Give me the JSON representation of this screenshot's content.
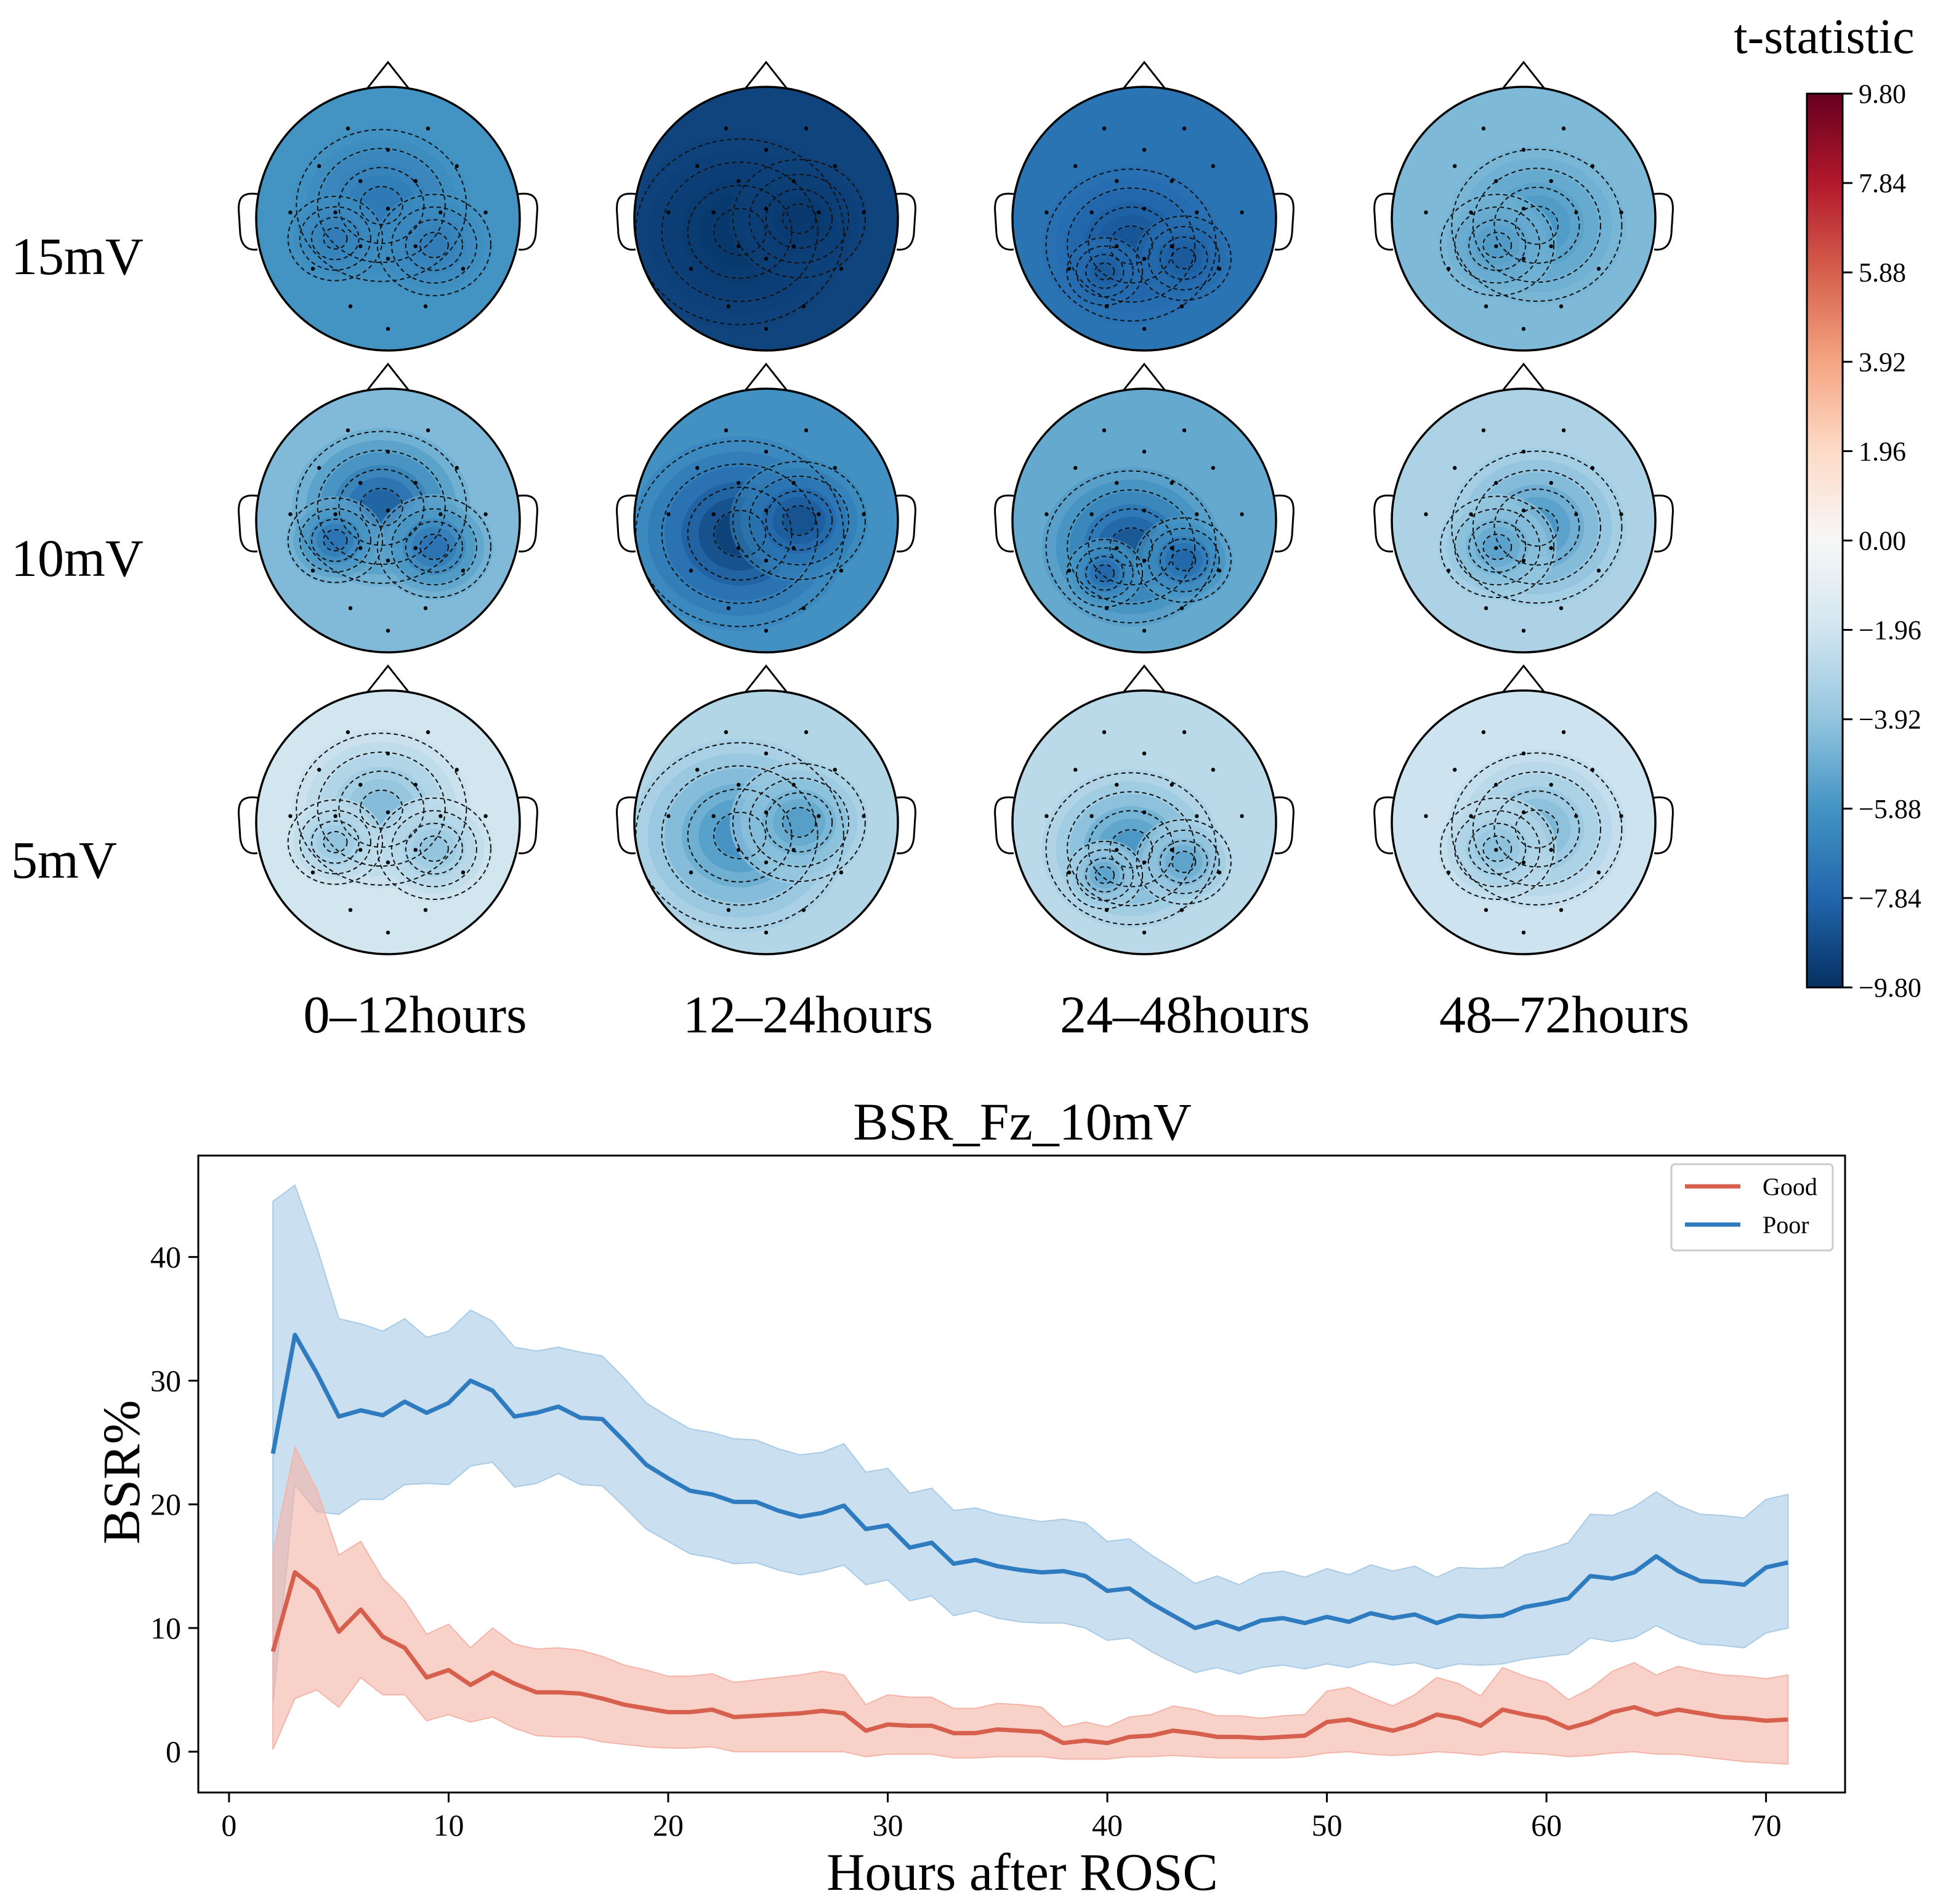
{
  "chart_data": [
    {
      "type": "heatmap",
      "subtype": "topographic-head-maps",
      "colorbar_title": "t-statistic",
      "colorbar_ticks": [
        "9.80",
        "7.84",
        "5.88",
        "3.92",
        "1.96",
        "0.00",
        "−1.96",
        "−3.92",
        "−5.88",
        "−7.84",
        "−9.80"
      ],
      "colorbar_range": [
        -9.8,
        9.8
      ],
      "colormap": [
        "#053061",
        "#2166ac",
        "#4393c3",
        "#92c5de",
        "#d1e5f0",
        "#f7f7f7",
        "#fddbc7",
        "#f4a582",
        "#d6604d",
        "#b2182b",
        "#67001f"
      ],
      "rows": [
        "15mV",
        "10mV",
        "5mV"
      ],
      "columns": [
        "0–12hours",
        "12–24hours",
        "24–48hours",
        "48–72hours"
      ],
      "mean_t": [
        [
          -6.2,
          -9.2,
          -7.6,
          -4.8
        ],
        [
          -5.4,
          -6.9,
          -6.0,
          -3.9
        ],
        [
          -2.6,
          -3.8,
          -3.6,
          -2.8
        ]
      ],
      "min_t": [
        [
          -7.2,
          -9.6,
          -8.6,
          -6.0
        ],
        [
          -8.4,
          -9.6,
          -8.8,
          -6.2
        ],
        [
          -4.6,
          -6.4,
          -6.2,
          -4.8
        ]
      ]
    },
    {
      "type": "line",
      "title": "BSR_Fz_10mV",
      "xlabel": "Hours after ROSC",
      "ylabel": "BSR%",
      "xlim": [
        -1.4,
        73.6
      ],
      "ylim": [
        -3.3,
        48.2
      ],
      "xticks": [
        0,
        10,
        20,
        30,
        40,
        50,
        60,
        70
      ],
      "yticks": [
        0,
        10,
        20,
        30,
        40
      ],
      "legend_position": "top-right",
      "x": [
        2,
        3,
        4,
        5,
        6,
        7,
        8,
        9,
        10,
        11,
        12,
        13,
        14,
        15,
        16,
        17,
        18,
        19,
        20,
        21,
        22,
        23,
        24,
        25,
        26,
        27,
        28,
        29,
        30,
        31,
        32,
        33,
        34,
        35,
        36,
        37,
        38,
        39,
        40,
        41,
        42,
        43,
        44,
        45,
        46,
        47,
        48,
        49,
        50,
        51,
        52,
        53,
        54,
        55,
        56,
        57,
        58,
        59,
        60,
        61,
        62,
        63,
        64,
        65,
        66,
        67,
        68,
        69,
        70,
        71
      ],
      "series": [
        {
          "name": "Good",
          "color": "#d6604d",
          "values": [
            8.1,
            14.5,
            13.1,
            9.7,
            11.5,
            9.3,
            8.4,
            6.0,
            6.6,
            5.4,
            6.4,
            5.5,
            4.8,
            4.8,
            4.7,
            4.3,
            3.8,
            3.5,
            3.2,
            3.2,
            3.4,
            2.8,
            2.9,
            3.0,
            3.1,
            3.3,
            3.1,
            1.7,
            2.2,
            2.1,
            2.1,
            1.5,
            1.5,
            1.8,
            1.7,
            1.6,
            0.7,
            0.9,
            0.7,
            1.2,
            1.3,
            1.7,
            1.5,
            1.2,
            1.2,
            1.1,
            1.2,
            1.3,
            2.4,
            2.6,
            2.1,
            1.7,
            2.2,
            3.0,
            2.7,
            2.1,
            3.4,
            3.0,
            2.7,
            1.9,
            2.4,
            3.2,
            3.6,
            3.0,
            3.4,
            3.1,
            2.8,
            2.7,
            2.5,
            2.6
          ],
          "lower": [
            0.2,
            4.3,
            5.0,
            3.6,
            6.0,
            4.6,
            4.6,
            2.5,
            3.0,
            2.4,
            2.8,
            1.9,
            1.3,
            1.2,
            1.2,
            0.8,
            0.6,
            0.4,
            0.3,
            0.3,
            0.4,
            0.0,
            0.0,
            0.0,
            0.0,
            0.0,
            0.0,
            -0.4,
            -0.2,
            -0.2,
            -0.2,
            -0.5,
            -0.5,
            -0.4,
            -0.4,
            -0.4,
            -0.6,
            -0.6,
            -0.6,
            -0.4,
            -0.4,
            -0.3,
            -0.4,
            -0.5,
            -0.5,
            -0.5,
            -0.5,
            -0.4,
            -0.1,
            0.0,
            -0.2,
            -0.3,
            -0.2,
            0.0,
            -0.1,
            -0.3,
            0.0,
            -0.1,
            -0.2,
            -0.4,
            -0.3,
            -0.1,
            0.0,
            -0.2,
            -0.2,
            -0.4,
            -0.6,
            -0.8,
            -0.9,
            -1.0
          ],
          "upper": [
            16.0,
            24.6,
            21.2,
            15.9,
            17.0,
            14.0,
            12.2,
            9.5,
            10.3,
            8.4,
            10.0,
            8.7,
            8.3,
            8.4,
            8.2,
            7.7,
            7.0,
            6.6,
            6.1,
            6.1,
            6.3,
            5.6,
            5.8,
            6.0,
            6.2,
            6.5,
            6.2,
            3.8,
            4.6,
            4.4,
            4.4,
            3.5,
            3.5,
            3.9,
            3.8,
            3.6,
            2.0,
            2.4,
            2.0,
            2.8,
            3.0,
            3.7,
            3.4,
            2.9,
            2.9,
            2.7,
            2.9,
            3.0,
            4.9,
            5.2,
            4.4,
            3.7,
            4.6,
            6.0,
            5.5,
            4.5,
            6.8,
            6.1,
            5.6,
            4.2,
            5.1,
            6.5,
            7.2,
            6.2,
            6.9,
            6.5,
            6.2,
            6.1,
            5.9,
            6.2
          ]
        },
        {
          "name": "Poor",
          "color": "#2f7bbf",
          "values": [
            24.1,
            33.7,
            30.6,
            27.1,
            27.6,
            27.2,
            28.3,
            27.4,
            28.2,
            30.0,
            29.2,
            27.1,
            27.4,
            27.9,
            27.0,
            26.9,
            25.1,
            23.2,
            22.1,
            21.1,
            20.8,
            20.2,
            20.2,
            19.5,
            19.0,
            19.3,
            19.9,
            18.0,
            18.3,
            16.5,
            16.9,
            15.2,
            15.5,
            15.0,
            14.7,
            14.5,
            14.6,
            14.2,
            13.0,
            13.2,
            12.0,
            11.0,
            10.0,
            10.5,
            9.9,
            10.6,
            10.8,
            10.4,
            10.9,
            10.5,
            11.2,
            10.8,
            11.1,
            10.4,
            11.0,
            10.9,
            11.0,
            11.7,
            12.0,
            12.4,
            14.2,
            14.0,
            14.5,
            15.8,
            14.6,
            13.8,
            13.7,
            13.5,
            14.9,
            15.3
          ],
          "lower": [
            3.8,
            21.6,
            19.4,
            19.2,
            20.4,
            20.4,
            21.6,
            21.7,
            21.6,
            23.1,
            23.4,
            21.4,
            21.7,
            22.5,
            21.6,
            21.5,
            19.8,
            18.0,
            17.0,
            16.0,
            15.7,
            15.2,
            15.3,
            14.7,
            14.3,
            14.6,
            15.1,
            13.5,
            13.9,
            12.2,
            12.6,
            11.0,
            11.4,
            10.8,
            10.5,
            10.4,
            10.4,
            10.0,
            9.0,
            9.2,
            8.1,
            7.2,
            6.4,
            6.8,
            6.3,
            6.8,
            7.0,
            6.7,
            7.1,
            6.8,
            7.3,
            7.0,
            7.2,
            6.7,
            7.1,
            7.0,
            7.1,
            7.5,
            7.7,
            7.9,
            9.2,
            8.9,
            9.2,
            10.2,
            9.3,
            8.7,
            8.6,
            8.4,
            9.6,
            10.0
          ],
          "upper": [
            44.5,
            45.8,
            40.8,
            35.0,
            34.6,
            34.0,
            35.0,
            33.5,
            34.0,
            35.7,
            34.8,
            32.7,
            32.4,
            32.7,
            32.3,
            32.0,
            30.2,
            28.2,
            27.1,
            26.1,
            25.8,
            25.3,
            25.2,
            24.5,
            24.0,
            24.2,
            24.9,
            22.6,
            22.9,
            20.9,
            21.3,
            19.5,
            19.7,
            19.2,
            18.9,
            18.6,
            18.8,
            18.5,
            17.0,
            17.2,
            15.9,
            14.8,
            13.6,
            14.2,
            13.5,
            14.4,
            14.6,
            14.1,
            14.8,
            14.3,
            15.1,
            14.6,
            15.0,
            14.1,
            14.9,
            14.8,
            14.9,
            15.9,
            16.3,
            16.9,
            19.2,
            19.1,
            19.8,
            21.0,
            19.9,
            19.2,
            19.1,
            18.9,
            20.4,
            20.8
          ]
        }
      ]
    }
  ]
}
